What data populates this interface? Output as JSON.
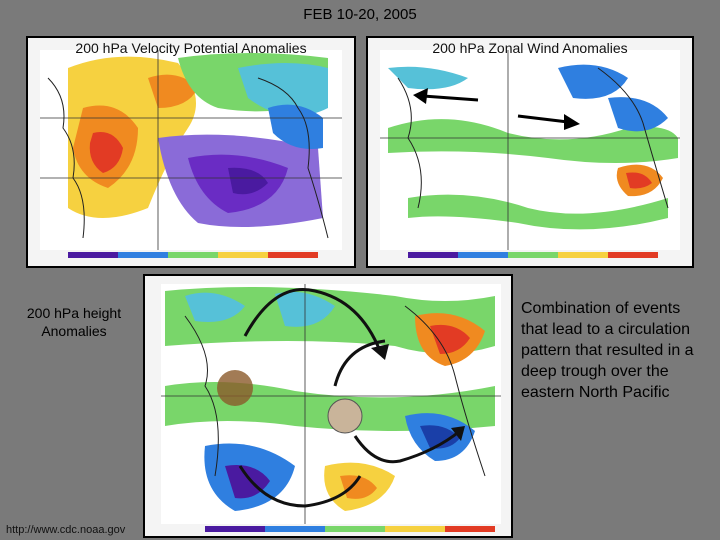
{
  "slide": {
    "title": "FEB 10-20, 2005"
  },
  "panels": {
    "velocity": {
      "caption": "200 hPa Velocity Potential Anomalies"
    },
    "zonal_wind": {
      "caption": "200 hPa Zonal Wind Anomalies"
    },
    "height": {
      "caption": "200 hPa height Anomalies"
    }
  },
  "description": "Combination of events that lead to a circulation pattern that resulted in a deep trough over the eastern North Pacific",
  "footer": {
    "url": "http://www.cdc.noaa.gov"
  },
  "colors": {
    "background": "#7a7a7a",
    "warm_anomaly": "#e8402a",
    "cool_anomaly": "#6a2cc4",
    "land_outline": "#202020",
    "green_zone": "#2fbf3a",
    "marker_brown": "#8b5a2b",
    "marker_tan": "#c9b49a"
  }
}
